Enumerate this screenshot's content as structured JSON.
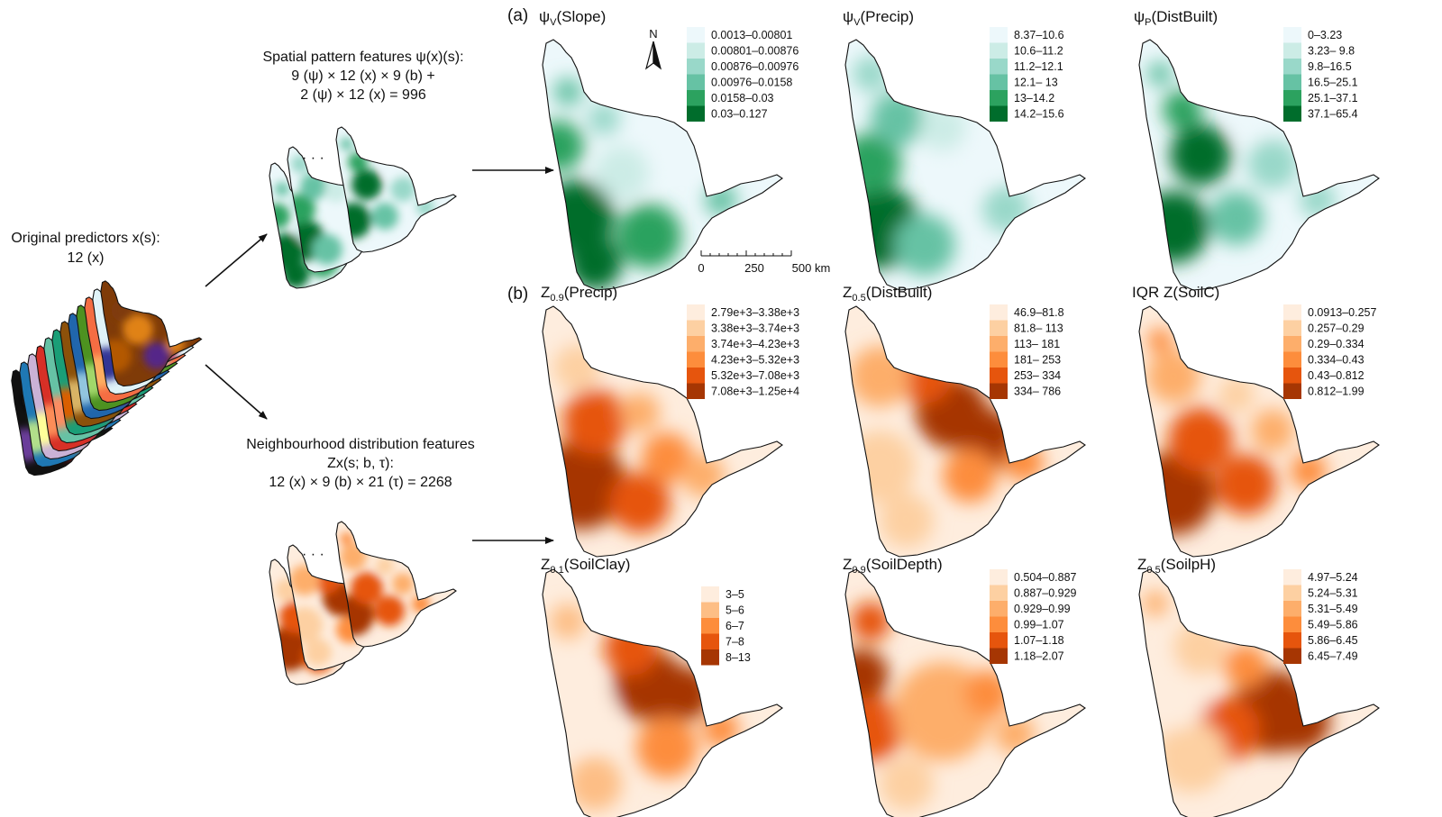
{
  "left_labels": {
    "original_line1": "Original predictors x(s):",
    "original_line2": "12 (x)",
    "spatial_line1": "Spatial pattern features ψ(x)(s):",
    "spatial_line2": "9 (ψ) × 12 (x) × 9 (b) +",
    "spatial_line3": "2 (ψ) × 12 (x) = 996",
    "neigh_line1": "Neighbourhood distribution features",
    "neigh_line2": "Zx(s; b, τ):",
    "neigh_line3": "12 (x) × 9 (b) × 21 (τ) = 2268",
    "ellipsis": "·  ·  ·"
  },
  "panel_tags": {
    "a": "(a)",
    "b": "(b)"
  },
  "north_label": "N",
  "scalebar": {
    "ticks": [
      "0",
      "250",
      "500 km"
    ]
  },
  "colors": {
    "green": [
      "#edf8fb",
      "#ccece6",
      "#99d8c9",
      "#66c2a4",
      "#2ca25f",
      "#006d2c"
    ],
    "orange": [
      "#feedde",
      "#fdd0a2",
      "#fdae6b",
      "#fd8d3c",
      "#e6550d",
      "#a63603"
    ],
    "orange5": [
      "#feedde",
      "#fdbe85",
      "#fd8d3c",
      "#e6550d",
      "#a63603"
    ]
  },
  "panels": [
    {
      "id": "slope",
      "sym": "ψ",
      "sub": "V",
      "arg": "(Slope)",
      "palette": "green",
      "legend": [
        "0.0013–0.00801",
        "0.00801–0.00876",
        "0.00876–0.00976",
        "0.00976–0.0158",
        "0.0158–0.03",
        "0.03–0.127"
      ]
    },
    {
      "id": "precip_psi",
      "sym": "ψ",
      "sub": "V",
      "arg": "(Precip)",
      "palette": "green",
      "legend": [
        "8.37–10.6",
        "10.6–11.2",
        "11.2–12.1",
        "12.1–  13",
        "  13–14.2",
        "14.2–15.6"
      ]
    },
    {
      "id": "distbuilt_psi",
      "sym": "ψ",
      "sub": "P",
      "arg": "(DistBuilt)",
      "palette": "green",
      "legend": [
        "0–3.23",
        "3.23– 9.8",
        "9.8–16.5",
        "16.5–25.1",
        "25.1–37.1",
        "37.1–65.4"
      ]
    },
    {
      "id": "precip_z",
      "sym": "Z",
      "sub": "0.9",
      "arg": "(Precip)",
      "palette": "orange",
      "legend": [
        "2.79e+3–3.38e+3",
        "3.38e+3–3.74e+3",
        "3.74e+3–4.23e+3",
        "4.23e+3–5.32e+3",
        "5.32e+3–7.08e+3",
        "7.08e+3–1.25e+4"
      ]
    },
    {
      "id": "distbuilt_z",
      "sym": "Z",
      "sub": "0.5",
      "arg": "(DistBuilt)",
      "palette": "orange",
      "legend": [
        "46.9–81.8",
        "81.8– 113",
        " 113– 181",
        " 181– 253",
        " 253– 334",
        " 334– 786"
      ]
    },
    {
      "id": "soilc_z",
      "sym": "IQR Z",
      "sub": "",
      "arg": "(SoilC)",
      "palette": "orange",
      "legend": [
        "0.0913–0.257",
        "0.257–0.29",
        "0.29–0.334",
        "0.334–0.43",
        "0.43–0.812",
        "0.812–1.99"
      ]
    },
    {
      "id": "soilclay_z",
      "sym": "Z",
      "sub": "0.1",
      "arg": "(SoilClay)",
      "palette": "orange5",
      "legend": [
        "3–5",
        "5–6",
        "6–7",
        "7–8",
        "8–13"
      ]
    },
    {
      "id": "soildepth_z",
      "sym": "Z",
      "sub": "0.9",
      "arg": "(SoilDepth)",
      "palette": "orange",
      "legend": [
        "0.504–0.887",
        "0.887–0.929",
        "0.929–0.99",
        "0.99–1.07",
        "1.07–1.18",
        "1.18–2.07"
      ]
    },
    {
      "id": "soilph_z",
      "sym": "Z",
      "sub": "0.5",
      "arg": "(SoilpH)",
      "palette": "orange",
      "legend": [
        "4.97–5.24",
        "5.24–5.31",
        "5.31–5.49",
        "5.49–5.86",
        "5.86–6.45",
        "6.45–7.49"
      ]
    }
  ]
}
